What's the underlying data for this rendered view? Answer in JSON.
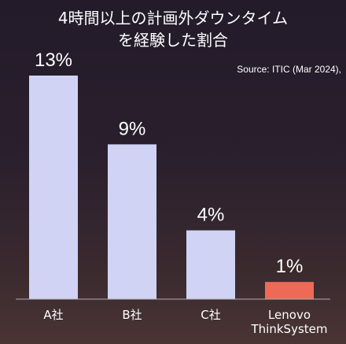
{
  "chart_data": {
    "type": "bar",
    "title_lines": [
      "4時間以上の計画外ダウンタイム",
      "を経験した割合"
    ],
    "source": "Source: ITIC (Mar 2024),",
    "categories": [
      [
        "A社"
      ],
      [
        "B社"
      ],
      [
        "C社"
      ],
      [
        "Lenovo",
        "ThinkSystem"
      ]
    ],
    "values": [
      13,
      9,
      4,
      1
    ],
    "value_labels": [
      "13%",
      "9%",
      "4%",
      "1%"
    ],
    "ylim": [
      0,
      13
    ],
    "grid": false,
    "colors": {
      "default_bar": "#d0d3f4",
      "highlight_bar": "#ef6a56",
      "axis_line": "#b0b0b0"
    },
    "highlight_index": 3
  }
}
